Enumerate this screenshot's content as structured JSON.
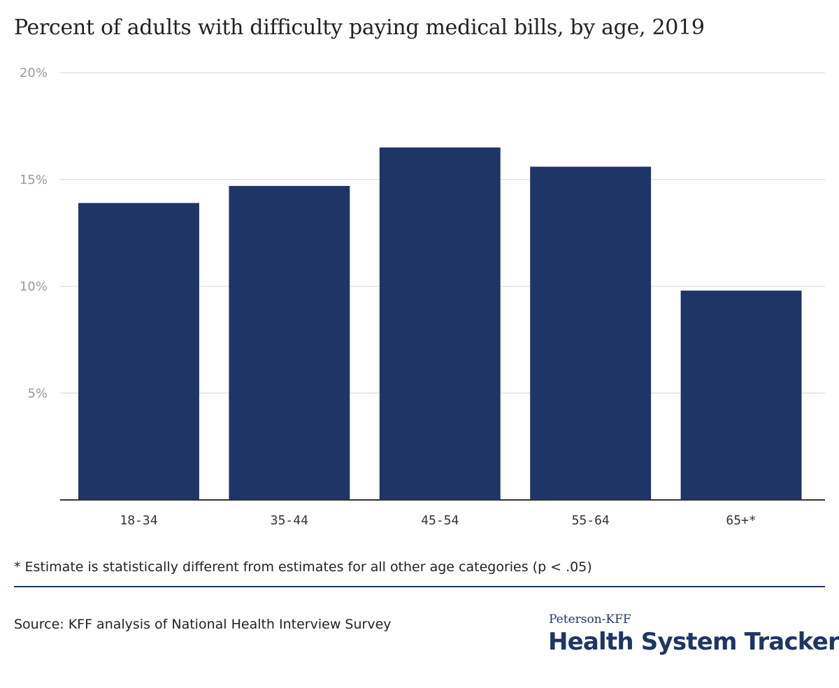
{
  "chart_data": {
    "type": "bar",
    "title": "Percent of adults with difficulty paying medical bills, by age, 2019",
    "categories": [
      "18-34",
      "35-44",
      "45-54",
      "55-64",
      "65+*"
    ],
    "values": [
      13.9,
      14.7,
      16.5,
      15.6,
      9.8
    ],
    "ylim": [
      0,
      20
    ],
    "yticks": [
      5,
      10,
      15,
      20
    ],
    "ytick_labels": [
      "5%",
      "10%",
      "15%",
      "20%"
    ],
    "grid": true,
    "bar_color": "#1f3566",
    "xlabel": "",
    "ylabel": ""
  },
  "footnote": "* Estimate is statistically different from estimates for all other age categories (p < .05)",
  "source": "Source: KFF analysis of National Health Interview Survey",
  "brand": {
    "top": "Peterson-KFF",
    "main": "Health System Tracker"
  },
  "colors": {
    "accent": "#1f3566",
    "grid": "#e2e2e2",
    "axis": "#333333"
  }
}
